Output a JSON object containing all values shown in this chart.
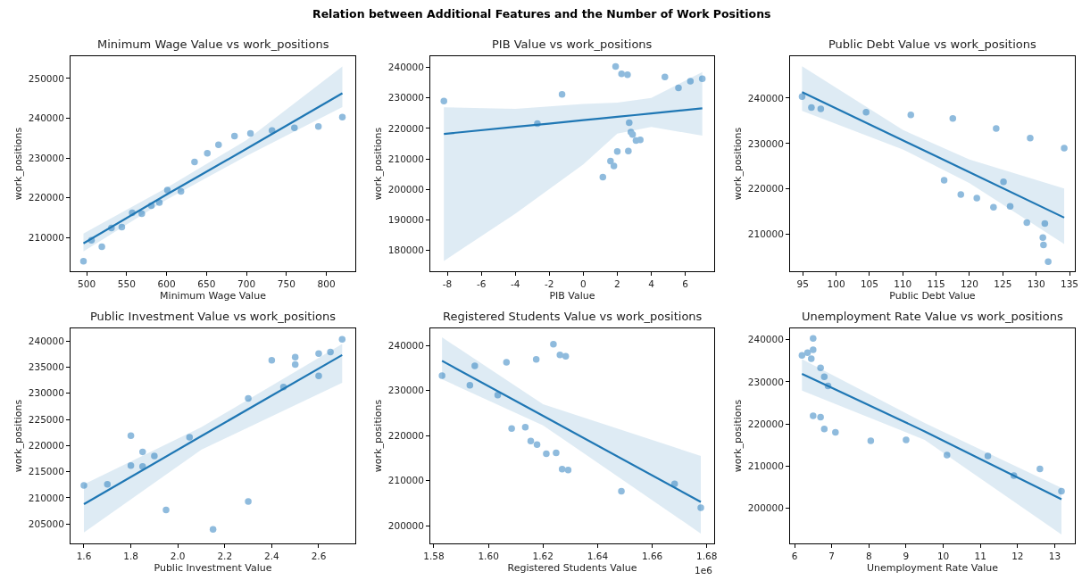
{
  "chart_data": [
    {
      "type": "scatter",
      "title": "Minimum Wage Value vs work_positions",
      "xlabel": "Minimum Wage Value",
      "ylabel": "work_positions",
      "annotations": [
        "Relation between Additional Features and the Number of Work Positions"
      ],
      "marker": "circle",
      "xlim": [
        479.8,
        836.2
      ],
      "xticks": [
        500,
        550,
        600,
        650,
        700,
        750,
        800
      ],
      "ylim": [
        201500,
        255600
      ],
      "yticks": [
        210000,
        220000,
        230000,
        240000,
        250000
      ],
      "series": [
        {
          "type": "scatter",
          "color": "#8fbbdd",
          "x": [
            496,
            506,
            519,
            531,
            544,
            557,
            569,
            581,
            591,
            601,
            618,
            635,
            651,
            665,
            685,
            705,
            732,
            760,
            790,
            820
          ],
          "values": [
            204000,
            209300,
            207700,
            212400,
            212600,
            216200,
            216000,
            218000,
            218800,
            221900,
            221600,
            229000,
            231200,
            233300,
            235500,
            236200,
            236900,
            237600,
            237900,
            240300
          ]
        },
        {
          "type": "line",
          "marker": "none",
          "color": "#1f77b4",
          "x": [
            496,
            600,
            700,
            820
          ],
          "values": [
            208500,
            220800,
            232300,
            246300
          ],
          "lower": [
            206500,
            219500,
            230500,
            242800
          ],
          "upper": [
            211000,
            222500,
            234500,
            253000
          ]
        }
      ]
    },
    {
      "type": "scatter",
      "title": "PIB Value vs work_positions",
      "xlabel": "PIB Value",
      "ylabel": "work_positions",
      "marker": "circle",
      "xlim": [
        -9.0,
        7.7
      ],
      "xticks": [
        -8,
        -6,
        -4,
        -2,
        0,
        2,
        4,
        6
      ],
      "ylim": [
        173100,
        243700
      ],
      "yticks": [
        180000,
        190000,
        200000,
        210000,
        220000,
        230000,
        240000
      ],
      "series": [
        {
          "type": "scatter",
          "color": "#8fbbdd",
          "x": [
            -8.2,
            -2.7,
            -1.25,
            1.15,
            1.6,
            1.8,
            1.9,
            2.0,
            2.25,
            2.6,
            2.65,
            2.7,
            2.8,
            2.9,
            3.1,
            3.35,
            4.8,
            5.6,
            6.3,
            7.0
          ],
          "values": [
            229000,
            221600,
            231200,
            204000,
            209300,
            207700,
            240300,
            212400,
            237900,
            237600,
            212600,
            221900,
            218800,
            218000,
            216000,
            216200,
            236900,
            233300,
            235500,
            236300
          ]
        },
        {
          "type": "line",
          "marker": "none",
          "color": "#1f77b4",
          "x": [
            -8.2,
            -4,
            0,
            2,
            4,
            7
          ],
          "values": [
            218200,
            220500,
            222700,
            223800,
            224900,
            226600
          ],
          "lower": [
            176500,
            192000,
            208200,
            218300,
            220500,
            217600
          ],
          "upper": [
            226900,
            226400,
            228000,
            228500,
            230000,
            238500
          ]
        }
      ]
    },
    {
      "type": "scatter",
      "title": "Public Debt Value vs work_positions",
      "xlabel": "Public Debt Value",
      "ylabel": "work_positions",
      "marker": "circle",
      "xlim": [
        93.1,
        135.8
      ],
      "xticks": [
        95,
        100,
        105,
        110,
        115,
        120,
        125,
        130,
        135
      ],
      "ylim": [
        201900,
        249200
      ],
      "yticks": [
        210000,
        220000,
        230000,
        240000
      ],
      "series": [
        {
          "type": "scatter",
          "color": "#8fbbdd",
          "x": [
            94.9,
            96.3,
            97.7,
            104.5,
            111.2,
            117.5,
            116.2,
            118.7,
            121.1,
            123.6,
            124,
            125.1,
            126.1,
            128.6,
            129.1,
            131,
            131.1,
            131.3,
            131.8,
            134.2
          ],
          "values": [
            240300,
            237900,
            237600,
            236900,
            236300,
            235500,
            221900,
            218800,
            218000,
            216000,
            233300,
            221600,
            216200,
            212600,
            231200,
            209300,
            207700,
            212400,
            204000,
            229000
          ]
        },
        {
          "type": "line",
          "marker": "none",
          "color": "#1f77b4",
          "x": [
            94.9,
            110,
            120,
            134.2
          ],
          "values": [
            241300,
            230700,
            223700,
            213700
          ],
          "lower": [
            237200,
            228700,
            221300,
            207900
          ],
          "upper": [
            247000,
            233000,
            226500,
            220100
          ]
        }
      ]
    },
    {
      "type": "scatter",
      "title": "Public Investment Value vs work_positions",
      "xlabel": "Public Investment Value",
      "ylabel": "work_positions",
      "marker": "circle",
      "xlim": [
        1.543,
        2.756
      ],
      "xticks": [
        {
          "value": 1.6,
          "label": "1.6"
        },
        {
          "value": 1.8,
          "label": "1.8"
        },
        {
          "value": 2.0,
          "label": "2.0"
        },
        {
          "value": 2.2,
          "label": "2.2"
        },
        {
          "value": 2.4,
          "label": "2.4"
        },
        {
          "value": 2.6,
          "label": "2.6"
        }
      ],
      "ylim": [
        201300,
        242400
      ],
      "yticks": [
        205000,
        210000,
        215000,
        220000,
        225000,
        230000,
        235000,
        240000
      ],
      "series": [
        {
          "type": "scatter",
          "color": "#8fbbdd",
          "x": [
            1.6,
            1.7,
            1.8,
            1.8,
            1.85,
            1.85,
            1.9,
            1.95,
            2.05,
            2.15,
            2.3,
            2.3,
            2.4,
            2.45,
            2.5,
            2.5,
            2.6,
            2.6,
            2.65,
            2.7
          ],
          "values": [
            212400,
            212600,
            221900,
            216200,
            218800,
            216000,
            218000,
            207700,
            221600,
            204000,
            229000,
            209300,
            236300,
            231200,
            236900,
            235500,
            237600,
            233300,
            237900,
            240300
          ]
        },
        {
          "type": "line",
          "marker": "none",
          "color": "#1f77b4",
          "x": [
            1.6,
            2.1,
            2.7
          ],
          "values": [
            208800,
            221800,
            237300
          ],
          "lower": [
            203400,
            219200,
            232000
          ],
          "upper": [
            212600,
            223500,
            239400
          ]
        }
      ]
    },
    {
      "type": "scatter",
      "title": "Registered Students Value vs work_positions",
      "xlabel": "Registered Students Value",
      "ylabel": "work_positions",
      "annotations": [
        "1e6"
      ],
      "marker": "circle",
      "xlim": [
        1.5787,
        1.6827
      ],
      "xticks": [
        1.58,
        {
          "value": 1.6,
          "label": "1.60"
        },
        1.62,
        1.64,
        1.66,
        1.68
      ],
      "ylim": [
        196100,
        243800
      ],
      "yticks": [
        200000,
        210000,
        220000,
        230000,
        240000
      ],
      "series": [
        {
          "type": "scatter",
          "color": "#8fbbdd",
          "x": [
            1.583,
            1.5932,
            1.595,
            1.6034,
            1.6066,
            1.6085,
            1.6135,
            1.6155,
            1.6175,
            1.6178,
            1.6212,
            1.6238,
            1.6248,
            1.6262,
            1.627,
            1.6283,
            1.6292,
            1.6487,
            1.6682,
            1.6778
          ],
          "values": [
            233300,
            231200,
            235500,
            229000,
            236300,
            221600,
            221900,
            218800,
            236900,
            218000,
            216000,
            240300,
            216200,
            237900,
            212600,
            237600,
            212400,
            207700,
            209300,
            204000
          ]
        },
        {
          "type": "line",
          "marker": "none",
          "color": "#1f77b4",
          "x": [
            1.583,
            1.62,
            1.6778
          ],
          "values": [
            236600,
            224400,
            205300
          ],
          "lower": [
            232500,
            222300,
            198300
          ],
          "upper": [
            241800,
            227000,
            215500
          ]
        }
      ]
    },
    {
      "type": "scatter",
      "title": "Unemployment Rate Value vs work_positions",
      "xlabel": "Unemployment Rate Value",
      "ylabel": "work_positions",
      "marker": "circle",
      "xlim": [
        5.88,
        13.54
      ],
      "xticks": [
        6,
        7,
        8,
        9,
        10,
        11,
        12,
        13
      ],
      "ylim": [
        191600,
        242700
      ],
      "yticks": [
        200000,
        210000,
        220000,
        230000,
        240000
      ],
      "series": [
        {
          "type": "scatter",
          "color": "#8fbbdd",
          "x": [
            6.2,
            6.35,
            6.45,
            6.5,
            6.5,
            6.5,
            6.7,
            6.7,
            6.8,
            6.8,
            6.9,
            7.1,
            8.05,
            9.0,
            10.1,
            11.2,
            11.9,
            12.6,
            13.18
          ],
          "values": [
            236300,
            236900,
            235500,
            240300,
            237600,
            221900,
            233300,
            221600,
            231200,
            218800,
            229000,
            218000,
            216000,
            216200,
            212600,
            212400,
            207700,
            209300,
            204000
          ]
        },
        {
          "type": "line",
          "marker": "none",
          "color": "#1f77b4",
          "x": [
            6.2,
            9.5,
            13.18
          ],
          "values": [
            231900,
            218200,
            202100
          ],
          "lower": [
            227900,
            216200,
            193700
          ],
          "upper": [
            235400,
            220200,
            204800
          ]
        }
      ]
    }
  ]
}
